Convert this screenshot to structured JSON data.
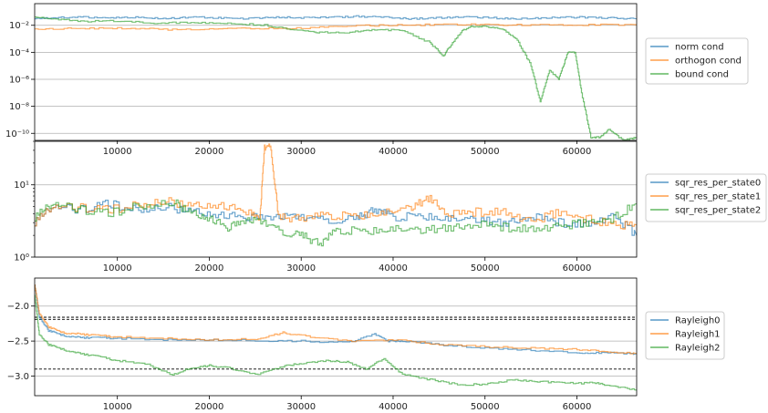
{
  "colors": {
    "blue": "#1f77b4",
    "orange": "#ff7f0e",
    "green": "#2ca02c"
  },
  "chart_data": [
    {
      "type": "line",
      "yscale": "log",
      "xlim": [
        1000,
        66500
      ],
      "ylim": [
        3e-11,
        0.4
      ],
      "xticks": [
        10000,
        20000,
        30000,
        40000,
        50000,
        60000
      ],
      "xtick_labels": [
        "10000",
        "20000",
        "30000",
        "40000",
        "50000",
        "60000"
      ],
      "yticks": [
        1e-10,
        1e-08,
        1e-06,
        0.0001,
        0.01
      ],
      "ytick_labels": [
        "10⁻¹⁰",
        "10⁻⁸",
        "10⁻⁶",
        "10⁻⁴",
        "10⁻²"
      ],
      "grid": "y",
      "legend_placement": "right",
      "series": [
        {
          "name": "norm cond",
          "color": "#1f77b4",
          "x": [
            1000,
            3000,
            6000,
            9000,
            12000,
            15000,
            18000,
            21000,
            24000,
            27000,
            30000,
            33000,
            36000,
            39000,
            42000,
            45000,
            48000,
            51000,
            54000,
            57000,
            60000,
            63000,
            66500
          ],
          "y": [
            0.03,
            0.035,
            0.04,
            0.035,
            0.04,
            0.03,
            0.04,
            0.035,
            0.03,
            0.04,
            0.035,
            0.04,
            0.045,
            0.04,
            0.03,
            0.035,
            0.04,
            0.035,
            0.03,
            0.035,
            0.04,
            0.035,
            0.03
          ]
        },
        {
          "name": "orthogon cond",
          "color": "#ff7f0e",
          "x": [
            1000,
            5000,
            10000,
            15000,
            20000,
            25000,
            30000,
            35000,
            40000,
            45000,
            50000,
            55000,
            60000,
            66500
          ],
          "y": [
            0.005,
            0.006,
            0.006,
            0.005,
            0.005,
            0.006,
            0.006,
            0.009,
            0.01,
            0.011,
            0.011,
            0.011,
            0.011,
            0.011
          ]
        },
        {
          "name": "bound cond",
          "color": "#2ca02c",
          "x": [
            1000,
            3000,
            6000,
            10000,
            14000,
            18000,
            22000,
            26000,
            30000,
            32000,
            35000,
            38000,
            41000,
            44000,
            45500,
            46000,
            47500,
            48500,
            50000,
            52000,
            53500,
            55000,
            56000,
            57000,
            58000,
            59000,
            59800,
            60500,
            61500,
            62500,
            63500,
            65000,
            66500
          ],
          "y": [
            0.04,
            0.03,
            0.02,
            0.02,
            0.015,
            0.015,
            0.015,
            0.01,
            0.004,
            0.003,
            0.003,
            0.005,
            0.004,
            0.0005,
            5e-05,
            0.0002,
            0.004,
            0.008,
            0.008,
            0.005,
            0.0008,
            1e-05,
            2e-08,
            5e-06,
            1e-06,
            0.0001,
            0.0001,
            1e-07,
            5e-11,
            5e-11,
            2e-10,
            3e-11,
            5e-11
          ]
        }
      ]
    },
    {
      "type": "line",
      "yscale": "log",
      "xlim": [
        1000,
        66500
      ],
      "ylim": [
        1,
        40
      ],
      "xticks": [
        10000,
        20000,
        30000,
        40000,
        50000,
        60000
      ],
      "xtick_labels": [
        "10000",
        "20000",
        "30000",
        "40000",
        "50000",
        "60000"
      ],
      "yticks": [
        1,
        10
      ],
      "ytick_labels": [
        "10⁰",
        "10¹"
      ],
      "grid": "y",
      "legend_placement": "right",
      "series": [
        {
          "name": "sqr_res_per_state0",
          "color": "#1f77b4",
          "x": [
            1000,
            3000,
            6000,
            9000,
            12000,
            15000,
            18000,
            21000,
            24000,
            27000,
            30000,
            33000,
            36000,
            38000,
            40000,
            43000,
            46000,
            49000,
            52000,
            55000,
            58000,
            61000,
            64000,
            66500
          ],
          "y": [
            3.0,
            5.0,
            4.5,
            5.5,
            4.5,
            5.0,
            4.2,
            4.0,
            3.5,
            3.5,
            3.6,
            3.2,
            3.4,
            4.5,
            3.6,
            3.6,
            3.3,
            3.4,
            3.0,
            3.6,
            3.0,
            2.8,
            3.6,
            2.0
          ]
        },
        {
          "name": "sqr_res_per_state1",
          "color": "#ff7f0e",
          "x": [
            1000,
            3000,
            6000,
            9000,
            12000,
            15000,
            18000,
            21000,
            24000,
            25500,
            26000,
            26700,
            27500,
            30000,
            33000,
            36000,
            39000,
            42000,
            44000,
            46000,
            49000,
            52000,
            55000,
            58000,
            61000,
            64000,
            66500
          ],
          "y": [
            3.0,
            5.0,
            4.8,
            4.5,
            5.2,
            6.0,
            5.0,
            5.5,
            4.2,
            3.4,
            33.0,
            33.0,
            3.5,
            3.4,
            3.8,
            3.6,
            4.0,
            5.0,
            6.8,
            3.8,
            4.2,
            4.2,
            3.0,
            4.2,
            3.4,
            2.8,
            2.8
          ]
        },
        {
          "name": "sqr_res_per_state2",
          "color": "#2ca02c",
          "x": [
            1000,
            3000,
            6000,
            9000,
            12000,
            16000,
            18000,
            20000,
            22000,
            24000,
            26000,
            28000,
            30000,
            32000,
            34000,
            37000,
            40000,
            43000,
            46000,
            49000,
            52000,
            55000,
            58000,
            61000,
            64000,
            66500
          ],
          "y": [
            3.5,
            5.5,
            4.5,
            4.0,
            5.0,
            5.8,
            4.0,
            3.6,
            2.5,
            3.2,
            3.0,
            2.2,
            2.0,
            1.5,
            2.4,
            2.2,
            2.4,
            2.4,
            2.6,
            2.8,
            2.6,
            2.4,
            2.6,
            3.0,
            3.5,
            5.5
          ]
        }
      ]
    },
    {
      "type": "line",
      "yscale": "linear",
      "xlim": [
        1000,
        66500
      ],
      "ylim": [
        -3.28,
        -1.6
      ],
      "xticks": [
        10000,
        20000,
        30000,
        40000,
        50000,
        60000
      ],
      "xtick_labels": [
        "10000",
        "20000",
        "30000",
        "40000",
        "50000",
        "60000"
      ],
      "yticks": [
        -2.0,
        -2.5,
        -3.0
      ],
      "ytick_labels": [
        "−2.0",
        "−2.5",
        "−3.0"
      ],
      "grid": "y",
      "legend_placement": "right",
      "hlines": [
        -2.16,
        -2.19,
        -2.9
      ],
      "series": [
        {
          "name": "Rayleigh0",
          "color": "#1f77b4",
          "x": [
            1000,
            1500,
            2500,
            4000,
            6000,
            8000,
            10000,
            15000,
            20000,
            25000,
            30000,
            35000,
            38000,
            39500,
            41000,
            45000,
            50000,
            55000,
            60000,
            63000,
            66500
          ],
          "y": [
            -1.7,
            -2.15,
            -2.35,
            -2.42,
            -2.45,
            -2.45,
            -2.46,
            -2.48,
            -2.48,
            -2.49,
            -2.5,
            -2.52,
            -2.4,
            -2.5,
            -2.5,
            -2.55,
            -2.6,
            -2.63,
            -2.67,
            -2.67,
            -2.68
          ]
        },
        {
          "name": "Rayleigh1",
          "color": "#ff7f0e",
          "x": [
            1000,
            1500,
            2500,
            4000,
            6000,
            8000,
            10000,
            15000,
            20000,
            25000,
            28000,
            30000,
            35000,
            40000,
            45000,
            50000,
            55000,
            60000,
            63000,
            66500
          ],
          "y": [
            -1.7,
            -2.1,
            -2.3,
            -2.38,
            -2.4,
            -2.42,
            -2.44,
            -2.46,
            -2.48,
            -2.47,
            -2.38,
            -2.42,
            -2.5,
            -2.48,
            -2.55,
            -2.58,
            -2.6,
            -2.62,
            -2.65,
            -2.68
          ]
        },
        {
          "name": "Rayleigh2",
          "color": "#2ca02c",
          "x": [
            1000,
            1500,
            2500,
            4000,
            6000,
            8000,
            10000,
            13000,
            16000,
            18000,
            20000,
            22000,
            25000,
            28000,
            30000,
            33000,
            35000,
            37000,
            39000,
            41000,
            44000,
            47000,
            50000,
            53000,
            56000,
            59000,
            62000,
            64000,
            66500
          ],
          "y": [
            -1.85,
            -2.4,
            -2.55,
            -2.62,
            -2.68,
            -2.72,
            -2.78,
            -2.82,
            -2.98,
            -2.88,
            -2.85,
            -2.88,
            -2.98,
            -2.86,
            -2.82,
            -2.78,
            -2.8,
            -2.9,
            -2.75,
            -2.98,
            -3.05,
            -3.12,
            -3.12,
            -3.05,
            -3.08,
            -3.1,
            -3.1,
            -3.15,
            -3.2
          ]
        }
      ]
    }
  ]
}
